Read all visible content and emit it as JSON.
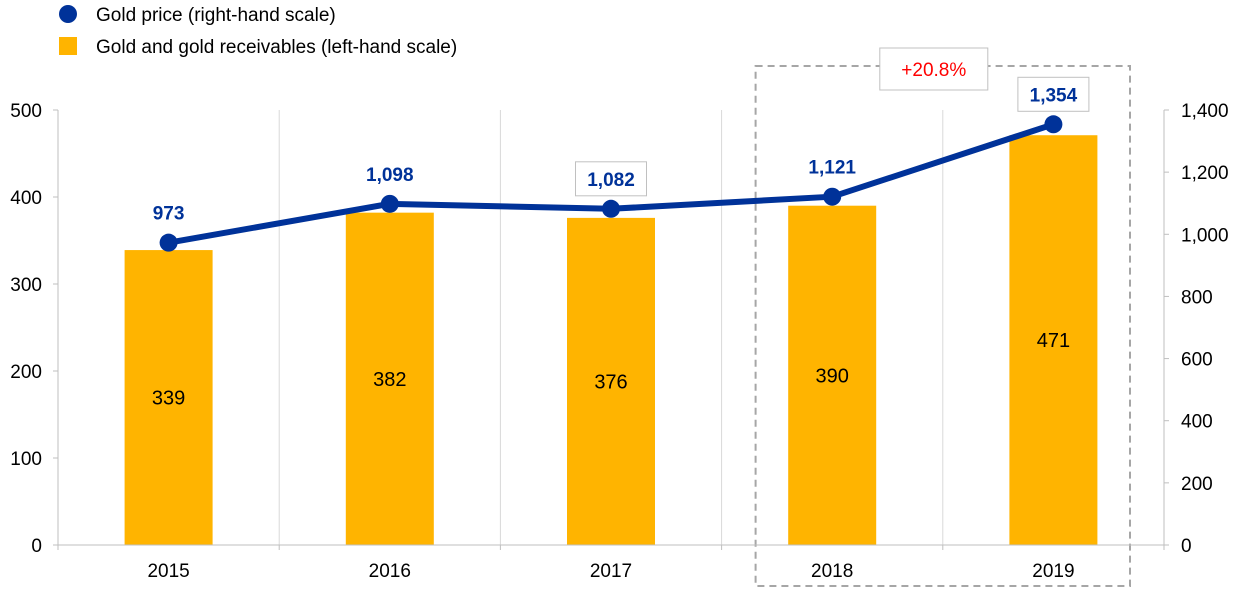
{
  "chart_data": {
    "type": "bar+line",
    "categories": [
      "2015",
      "2016",
      "2017",
      "2018",
      "2019"
    ],
    "series": [
      {
        "name": "Gold and gold receivables (left-hand scale)",
        "type": "bar",
        "axis": "left",
        "values": [
          339,
          382,
          376,
          390,
          471
        ],
        "labels": [
          "339",
          "382",
          "376",
          "390",
          "471"
        ],
        "color": "#ffb400"
      },
      {
        "name": "Gold price (right-hand scale)",
        "type": "line",
        "axis": "right",
        "values": [
          973,
          1098,
          1082,
          1121,
          1354
        ],
        "labels": [
          "973",
          "1,098",
          "1,082",
          "1,121",
          "1,354"
        ],
        "color": "#003299"
      }
    ],
    "y_left": {
      "range": [
        0,
        500
      ],
      "ticks": [
        0,
        100,
        200,
        300,
        400,
        500
      ],
      "tick_labels": [
        "0",
        "100",
        "200",
        "300",
        "400",
        "500"
      ]
    },
    "y_right": {
      "range": [
        0,
        1400
      ],
      "ticks": [
        0,
        200,
        400,
        600,
        800,
        1000,
        1200,
        1400
      ],
      "tick_labels": [
        "0",
        "200",
        "400",
        "600",
        "800",
        "1,000",
        "1,200",
        "1,400"
      ]
    },
    "grid": "vertical",
    "legend_position": "top-left",
    "annotation": {
      "text": "+20.8%",
      "color": "#ff0000",
      "highlight_categories": [
        "2018",
        "2019"
      ]
    }
  }
}
